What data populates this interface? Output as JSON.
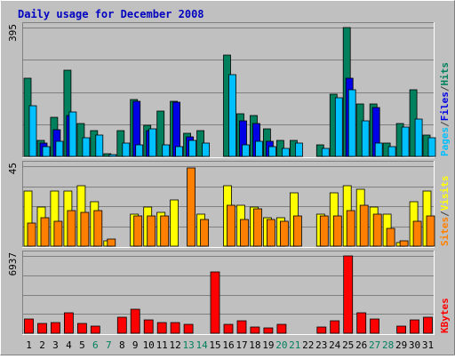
{
  "chart_data": {
    "type": "bar",
    "title": "Daily usage for December 2008",
    "colors": {
      "background": "#C0C0C0",
      "hits": "#00805C",
      "files": "#0000E6",
      "pages": "#00C0FF",
      "visits": "#FFFF00",
      "sites": "#FF8000",
      "kbytes": "#FF0000",
      "weekend_label": "#00805C",
      "title_color": "#0000C0"
    },
    "categories": [
      "1",
      "2",
      "3",
      "4",
      "5",
      "6",
      "7",
      "8",
      "9",
      "10",
      "11",
      "12",
      "13",
      "14",
      "15",
      "16",
      "17",
      "18",
      "19",
      "20",
      "21",
      "22",
      "23",
      "24",
      "25",
      "26",
      "27",
      "28",
      "29",
      "30",
      "31"
    ],
    "weekend_days": [
      "6",
      "7",
      "13",
      "14",
      "20",
      "21",
      "27",
      "28"
    ],
    "panels": [
      {
        "id": "hits-files-pages",
        "ymax_label": "395",
        "ymax": 395,
        "legend": [
          "Pages",
          "/",
          "Files",
          "/",
          "Hits"
        ],
        "legend_colors": [
          "#00C0FF",
          "#404040",
          "#0000E6",
          "#404040",
          "#00805C"
        ],
        "series": [
          {
            "name": "Hits",
            "values": [
              240,
              50,
              120,
              265,
              100,
              80,
              8,
              80,
              175,
              95,
              140,
              170,
              70,
              80,
              0,
              310,
              130,
              125,
              85,
              50,
              50,
              0,
              35,
              190,
              395,
              160,
              160,
              40,
              100,
              205,
              65
            ]
          },
          {
            "name": "Files",
            "values": [
              0,
              40,
              82,
              125,
              0,
              0,
              0,
              0,
              170,
              80,
              0,
              165,
              60,
              0,
              0,
              0,
              110,
              100,
              45,
              0,
              0,
              0,
              0,
              0,
              240,
              0,
              150,
              0,
              0,
              0,
              0
            ]
          },
          {
            "name": "Pages",
            "values": [
              155,
              30,
              45,
              135,
              58,
              65,
              6,
              40,
              35,
              85,
              35,
              30,
              50,
              40,
              0,
              250,
              35,
              45,
              30,
              25,
              40,
              0,
              25,
              180,
              205,
              110,
              40,
              30,
              90,
              115,
              58
            ]
          }
        ]
      },
      {
        "id": "visits-sites",
        "ymax_label": "45",
        "ymax": 45,
        "legend": [
          "Sites",
          "/",
          "Visits"
        ],
        "legend_colors": [
          "#FF8000",
          "#404040",
          "#FFFF00"
        ],
        "series": [
          {
            "name": "Visits",
            "values": [
              31,
              22,
              31,
              31,
              34,
              25,
              3,
              0,
              18,
              22,
              19,
              26,
              0,
              18,
              0,
              34,
              23,
              22,
              16,
              16,
              30,
              0,
              18,
              30,
              34,
              32,
              22,
              18,
              2,
              25,
              31
            ]
          },
          {
            "name": "Sites",
            "values": [
              13,
              16,
              14,
              20,
              19,
              20,
              4,
              0,
              17,
              17,
              17,
              0,
              44,
              15,
              0,
              23,
              15,
              21,
              15,
              14,
              17,
              0,
              17,
              17,
              20,
              23,
              18,
              10,
              3,
              14,
              17
            ]
          }
        ]
      },
      {
        "id": "kbytes",
        "ymax_label": "6937",
        "ymax": 6937,
        "legend": [
          "KBytes"
        ],
        "legend_colors": [
          "#FF0000"
        ],
        "series": [
          {
            "name": "KBytes",
            "values": [
              1310,
              880,
              990,
              1860,
              870,
              660,
              0,
              1470,
              2130,
              1210,
              920,
              920,
              830,
              0,
              5540,
              760,
              1110,
              590,
              490,
              760,
              0,
              0,
              570,
              1080,
              6937,
              1850,
              1300,
              0,
              660,
              1180,
              1460
            ]
          }
        ]
      }
    ]
  }
}
